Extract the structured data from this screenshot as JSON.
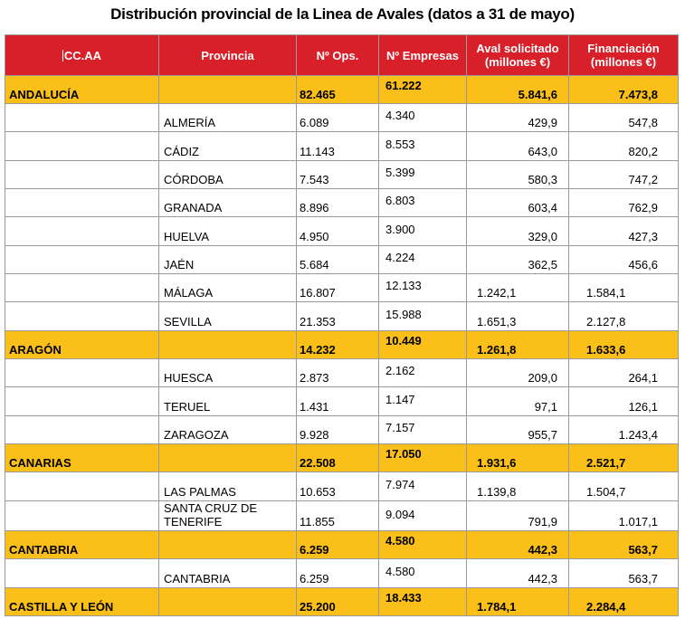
{
  "title": "Distribución provincial de la Linea de Avales (datos a 31 de mayo)",
  "headers": {
    "ccaa": "CC.AA",
    "provincia": "Provincia",
    "ops": "Nº Ops.",
    "empresas": "Nº Empresas",
    "aval_l1": "Aval solicitado",
    "aval_l2": "(millones €)",
    "fin_l1": "Financiación",
    "fin_l2": "(millones €)"
  },
  "rows": [
    {
      "type": "region",
      "ccaa": "ANDALUCÍA",
      "provincia": "",
      "ops": "82.465",
      "empresas": "61.222",
      "aval": "5.841,6",
      "fin": "7.473,8"
    },
    {
      "type": "prov",
      "ccaa": "",
      "provincia": "ALMERÍA",
      "ops": "6.089",
      "empresas": "4.340",
      "aval": "429,9",
      "fin": "547,8"
    },
    {
      "type": "prov",
      "ccaa": "",
      "provincia": "CÁDIZ",
      "ops": "11.143",
      "empresas": "8.553",
      "aval": "643,0",
      "fin": "820,2"
    },
    {
      "type": "prov",
      "ccaa": "",
      "provincia": "CÓRDOBA",
      "ops": "7.543",
      "empresas": "5.399",
      "aval": "580,3",
      "fin": "747,2"
    },
    {
      "type": "prov",
      "ccaa": "",
      "provincia": "GRANADA",
      "ops": "8.896",
      "empresas": "6.803",
      "aval": "603,4",
      "fin": "762,9"
    },
    {
      "type": "prov",
      "ccaa": "",
      "provincia": "HUELVA",
      "ops": "4.950",
      "empresas": "3.900",
      "aval": "329,0",
      "fin": "427,3"
    },
    {
      "type": "prov",
      "ccaa": "",
      "provincia": "JAÉN",
      "ops": "5.684",
      "empresas": "4.224",
      "aval": "362,5",
      "fin": "456,6"
    },
    {
      "type": "prov",
      "ccaa": "",
      "provincia": "MÁLAGA",
      "ops": "16.807",
      "empresas": "12.133",
      "aval": "1.242,1",
      "fin": "1.584,1",
      "left": true
    },
    {
      "type": "prov",
      "ccaa": "",
      "provincia": "SEVILLA",
      "ops": "21.353",
      "empresas": "15.988",
      "aval": "1.651,3",
      "fin": "2.127,8",
      "left": true
    },
    {
      "type": "region",
      "ccaa": "ARAGÓN",
      "provincia": "",
      "ops": "14.232",
      "empresas": "10.449",
      "aval": "1.261,8",
      "fin": "1.633,6",
      "left": true
    },
    {
      "type": "prov",
      "ccaa": "",
      "provincia": "HUESCA",
      "ops": "2.873",
      "empresas": "2.162",
      "aval": "209,0",
      "fin": "264,1"
    },
    {
      "type": "prov",
      "ccaa": "",
      "provincia": "TERUEL",
      "ops": "1.431",
      "empresas": "1.147",
      "aval": "97,1",
      "fin": "126,1"
    },
    {
      "type": "prov",
      "ccaa": "",
      "provincia": "ZARAGOZA",
      "ops": "9.928",
      "empresas": "7.157",
      "aval": "955,7",
      "fin": "1.243,4"
    },
    {
      "type": "region",
      "ccaa": "CANARIAS",
      "provincia": "",
      "ops": "22.508",
      "empresas": "17.050",
      "aval": "1.931,6",
      "fin": "2.521,7",
      "left": true
    },
    {
      "type": "prov",
      "ccaa": "",
      "provincia": "LAS PALMAS",
      "ops": "10.653",
      "empresas": "7.974",
      "aval": "1.139,8",
      "fin": "1.504,7",
      "left": true
    },
    {
      "type": "prov",
      "ccaa": "",
      "provincia": "SANTA CRUZ DE TENERIFE",
      "ops": "11.855",
      "empresas": "9.094",
      "aval": "791,9",
      "fin": "1.017,1"
    },
    {
      "type": "region",
      "ccaa": "CANTABRIA",
      "provincia": "",
      "ops": "6.259",
      "empresas": "4.580",
      "aval": "442,3",
      "fin": "563,7"
    },
    {
      "type": "prov",
      "ccaa": "",
      "provincia": "CANTABRIA",
      "ops": "6.259",
      "empresas": "4.580",
      "aval": "442,3",
      "fin": "563,7"
    },
    {
      "type": "region",
      "ccaa": "CASTILLA Y LEÓN",
      "provincia": "",
      "ops": "25.200",
      "empresas": "18.433",
      "aval": "1.784,1",
      "fin": "2.284,4",
      "left": true
    }
  ]
}
